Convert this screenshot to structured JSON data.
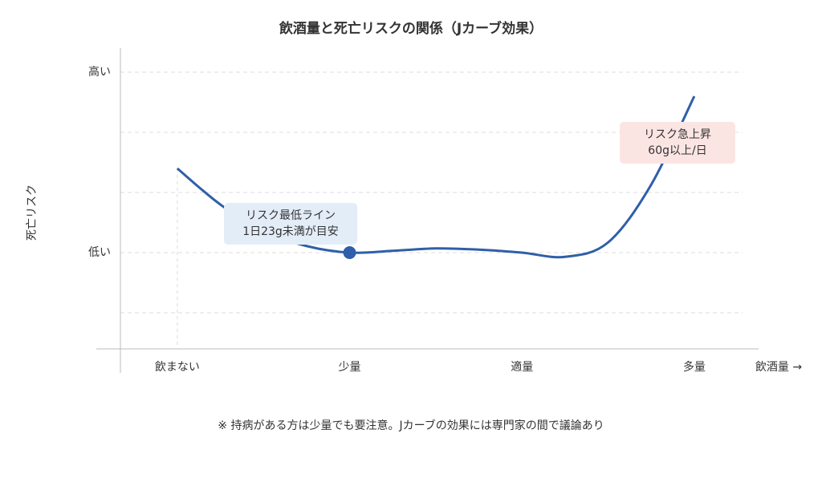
{
  "chart_data": {
    "type": "line",
    "title": "飲酒量と死亡リスクの関係（Jカーブ効果）",
    "x_label": "飲酒量 →",
    "y_label": "死亡リスク",
    "x": [
      0,
      0.25,
      0.5,
      0.75,
      1,
      1.25,
      1.5,
      1.75,
      2,
      2.25,
      2.5,
      2.75,
      3
    ],
    "series": [
      {
        "color": "#2f5fa8",
        "values": [
          2.4,
          1.8,
          1.36,
          1.11,
          1,
          1.03,
          1.07,
          1.05,
          1,
          0.93,
          1.17,
          2.13,
          3.6
        ]
      }
    ],
    "highlight_point": 4,
    "xlim": [
      -0.33,
      3.28
    ],
    "xticks": [
      {
        "value": 0,
        "label": "飲まない"
      },
      {
        "value": 1,
        "label": "少量"
      },
      {
        "value": 2,
        "label": "適量"
      },
      {
        "value": 3,
        "label": "多量"
      }
    ],
    "ylim": [
      -0.6,
      4.4
    ],
    "yticks": [
      {
        "value": 0,
        "label": null
      },
      {
        "value": 1,
        "label": "低い"
      },
      {
        "value": 2,
        "label": null
      },
      {
        "value": 3,
        "label": null
      },
      {
        "value": 4,
        "label": "高い"
      }
    ],
    "grid": true,
    "annotations": [
      {
        "lines": [
          "リスク最低ライン",
          "1日23g未満が目安"
        ],
        "color": "#e3edf8"
      },
      {
        "lines": [
          "リスク急上昇",
          "60g以上/日"
        ],
        "color": "#fbe5e3"
      }
    ],
    "footnote": "※ 持病がある方は少量でも要注意。Jカーブの効果には専門家の間で議論あり"
  }
}
